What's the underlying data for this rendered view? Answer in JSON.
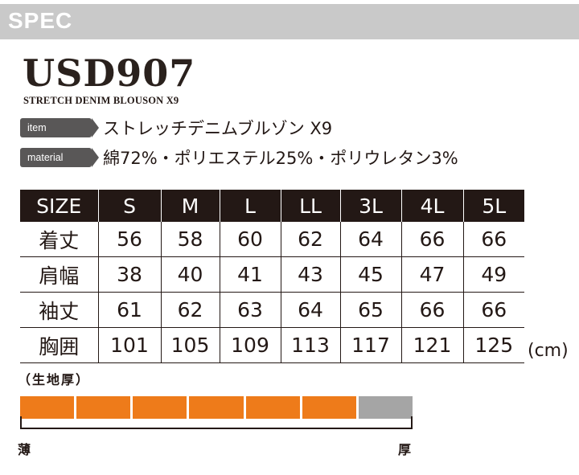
{
  "header": {
    "title": "SPEC"
  },
  "product": {
    "model": "USD907",
    "subtitle": "STRETCH DENIM BLOUSON X9"
  },
  "info": {
    "item_label": "item",
    "item_value": "ストレッチデニムブルゾン X9",
    "material_label": "material",
    "material_value": "綿72%・ポリエステル25%・ポリウレタン3%"
  },
  "size_table": {
    "headers": [
      "SIZE",
      "S",
      "M",
      "L",
      "LL",
      "3L",
      "4L",
      "5L"
    ],
    "rows": [
      [
        "着丈",
        "56",
        "58",
        "60",
        "62",
        "64",
        "66",
        "66"
      ],
      [
        "肩幅",
        "38",
        "40",
        "41",
        "43",
        "45",
        "47",
        "49"
      ],
      [
        "袖丈",
        "61",
        "62",
        "63",
        "64",
        "65",
        "66",
        "66"
      ],
      [
        "胸囲",
        "101",
        "105",
        "109",
        "113",
        "117",
        "121",
        "125"
      ]
    ],
    "unit": "(cm)"
  },
  "thickness": {
    "title": "（生地厚）",
    "total_segments": 7,
    "filled_segments": 6,
    "filled_color": "#ee7b1a",
    "empty_color": "#a5a5a5",
    "thin_label": "薄",
    "thick_label": "厚"
  }
}
